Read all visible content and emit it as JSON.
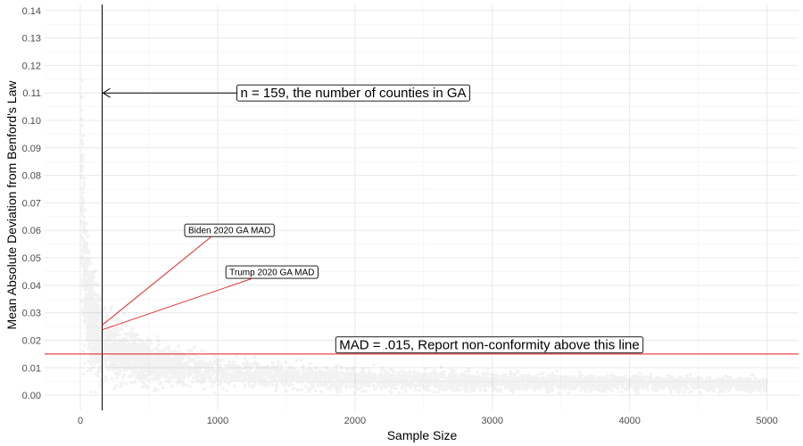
{
  "chart_data": {
    "type": "scatter",
    "title": "",
    "xlabel": "Sample Size",
    "ylabel": "Mean Absolute Deviation from Benford's Law",
    "xlim": [
      -260,
      5230
    ],
    "ylim": [
      -0.0055,
      0.1422
    ],
    "x_ticks": [
      0,
      1000,
      2000,
      3000,
      4000,
      5000
    ],
    "x_tick_labels": [
      "0",
      "1000",
      "2000",
      "3000",
      "4000",
      "5000"
    ],
    "y_ticks": [
      0,
      0.01,
      0.02,
      0.03,
      0.04,
      0.05,
      0.06,
      0.07,
      0.08,
      0.09,
      0.1,
      0.11,
      0.12,
      0.13,
      0.14
    ],
    "y_tick_labels": [
      "0.00",
      "0.01",
      "0.02",
      "0.03",
      "0.04",
      "0.05",
      "0.06",
      "0.07",
      "0.08",
      "0.09",
      "0.10",
      "0.11",
      "0.12",
      "0.13",
      "0.14"
    ],
    "grid": true,
    "point_color": "#000000",
    "point_alpha": 0.05,
    "simulated_points": {
      "description_of_trend": "MAD approx 0.26 / sqrt(n), decreasing with sample size",
      "x_range": [
        10,
        5000
      ],
      "y_at_n_25": 0.05,
      "y_at_n_159": 0.02,
      "y_at_n_1000": 0.008,
      "y_at_n_5000": 0.0035
    },
    "vline": {
      "x": 159,
      "color": "#000000"
    },
    "hline": {
      "y": 0.015,
      "color": "#e41a1c"
    },
    "annotations": [
      {
        "id": "counties",
        "text": "n = 159, the number of counties in GA",
        "label_x": 1140,
        "label_y": 0.11,
        "arrow_to_x": 159,
        "arrow_to_y": 0.11
      },
      {
        "id": "mad",
        "text": "MAD = .015, Report non-conformity above this line",
        "label_x": 1860,
        "label_y": 0.0183
      },
      {
        "id": "biden",
        "text": "Biden 2020 GA MAD",
        "label_x": 760,
        "label_y": 0.06,
        "point_x": 159,
        "point_y": 0.0255
      },
      {
        "id": "trump",
        "text": "Trump 2020 GA MAD",
        "label_x": 1060,
        "label_y": 0.0448,
        "point_x": 159,
        "point_y": 0.0238
      }
    ]
  }
}
